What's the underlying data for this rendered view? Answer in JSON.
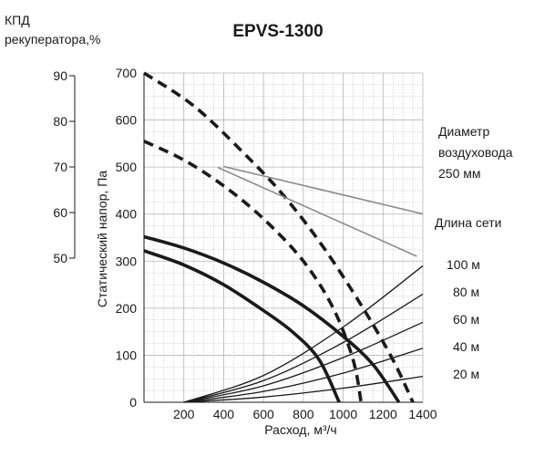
{
  "chart_data": {
    "type": "line",
    "title": "EPVS-1300",
    "xlabel": "Расход, м³/ч",
    "ylabel": "Статический напор, Па",
    "efficiency_axis_label_line1": "КПД",
    "efficiency_axis_label_line2": "рекуператора,%",
    "xlim": [
      0,
      1400
    ],
    "ylim": [
      0,
      700
    ],
    "x_ticks": [
      "200",
      "400",
      "600",
      "800",
      "1000",
      "1200",
      "1400"
    ],
    "y_ticks": [
      "0",
      "100",
      "200",
      "300",
      "400",
      "500",
      "600",
      "700"
    ],
    "efficiency_ticks": [
      "50",
      "60",
      "70",
      "80",
      "90"
    ],
    "efficiency_range": [
      50,
      90
    ],
    "grid": true,
    "duct_diameter_label_line1": "Диаметр",
    "duct_diameter_label_line2": "воздуховода",
    "duct_diameter_label_line3": "250 мм",
    "network_length_label": "Длина сети",
    "network_lengths": [
      "100 м",
      "80 м",
      "60 м",
      "40 м",
      "20 м"
    ],
    "series": [
      {
        "style": "dashed",
        "points": [
          [
            0,
            700
          ],
          [
            250,
            630
          ],
          [
            500,
            530
          ],
          [
            700,
            440
          ],
          [
            900,
            330
          ],
          [
            1100,
            200
          ],
          [
            1250,
            90
          ],
          [
            1350,
            0
          ]
        ]
      },
      {
        "style": "dashed",
        "points": [
          [
            0,
            555
          ],
          [
            200,
            515
          ],
          [
            400,
            460
          ],
          [
            600,
            390
          ],
          [
            800,
            300
          ],
          [
            950,
            200
          ],
          [
            1050,
            90
          ],
          [
            1090,
            0
          ]
        ]
      },
      {
        "style": "solid",
        "points": [
          [
            0,
            352
          ],
          [
            200,
            328
          ],
          [
            400,
            296
          ],
          [
            600,
            255
          ],
          [
            800,
            205
          ],
          [
            1000,
            140
          ],
          [
            1150,
            80
          ],
          [
            1280,
            0
          ]
        ]
      },
      {
        "style": "solid",
        "points": [
          [
            0,
            322
          ],
          [
            200,
            292
          ],
          [
            400,
            250
          ],
          [
            600,
            195
          ],
          [
            750,
            148
          ],
          [
            880,
            90
          ],
          [
            980,
            0
          ]
        ]
      },
      {
        "style": "efficiency",
        "points": [
          [
            400,
            70.1
          ],
          [
            1400,
            59.7
          ]
        ]
      },
      {
        "style": "efficiency",
        "points": [
          [
            370,
            69.9
          ],
          [
            1370,
            50.4
          ]
        ]
      },
      {
        "style": "network",
        "points": [
          [
            200,
            0
          ],
          [
            600,
            57
          ],
          [
            1000,
            160
          ],
          [
            1400,
            290
          ]
        ]
      },
      {
        "style": "network",
        "points": [
          [
            200,
            0
          ],
          [
            600,
            46
          ],
          [
            1000,
            127
          ],
          [
            1400,
            230
          ]
        ]
      },
      {
        "style": "network",
        "points": [
          [
            200,
            0
          ],
          [
            600,
            35
          ],
          [
            1000,
            95
          ],
          [
            1400,
            170
          ]
        ]
      },
      {
        "style": "network",
        "points": [
          [
            200,
            0
          ],
          [
            600,
            23
          ],
          [
            1000,
            62
          ],
          [
            1400,
            115
          ]
        ]
      },
      {
        "style": "network",
        "points": [
          [
            200,
            0
          ],
          [
            600,
            11
          ],
          [
            1000,
            30
          ],
          [
            1400,
            55
          ]
        ]
      }
    ],
    "colors": {
      "performance": "#1a1a1a",
      "efficiency": "#8c8c8c",
      "network": "#1a1a1a",
      "grid": "#b5b5b5",
      "axis": "#1a1a1a"
    }
  }
}
